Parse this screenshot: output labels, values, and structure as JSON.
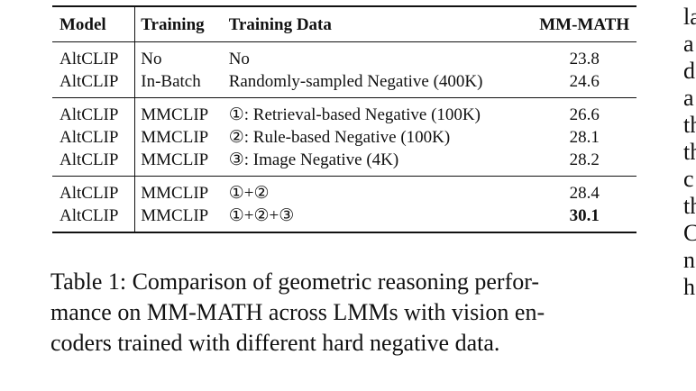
{
  "table": {
    "headers": [
      "Model",
      "Training",
      "Training Data",
      "MM-MATH"
    ],
    "groups": [
      [
        {
          "model": "AltCLIP",
          "training": "No",
          "data": "No",
          "score": "23.8",
          "bold": false
        },
        {
          "model": "AltCLIP",
          "training": "In-Batch",
          "data": "Randomly-sampled Negative (400K)",
          "score": "24.6",
          "bold": false
        }
      ],
      [
        {
          "model": "AltCLIP",
          "training": "MMCLIP",
          "data": "①: Retrieval-based Negative (100K)",
          "score": "26.6",
          "bold": false
        },
        {
          "model": "AltCLIP",
          "training": "MMCLIP",
          "data": "②: Rule-based Negative (100K)",
          "score": "28.1",
          "bold": false
        },
        {
          "model": "AltCLIP",
          "training": "MMCLIP",
          "data": "③: Image Negative (4K)",
          "score": "28.2",
          "bold": false
        }
      ],
      [
        {
          "model": "AltCLIP",
          "training": "MMCLIP",
          "data": "①+②",
          "score": "28.4",
          "bold": false
        },
        {
          "model": "AltCLIP",
          "training": "MMCLIP",
          "data": "①+②+③",
          "score": "30.1",
          "bold": true
        }
      ]
    ]
  },
  "caption": {
    "lines": [
      "Table 1: Comparison of geometric reasoning perfor-",
      "mance on MM-MATH across LMMs with vision en-",
      "coders trained with different hard negative data."
    ]
  },
  "right_column": {
    "fragments": [
      "la",
      "a",
      "d",
      "a",
      "th",
      "th",
      "c",
      "th",
      "C",
      "n",
      "h"
    ]
  }
}
